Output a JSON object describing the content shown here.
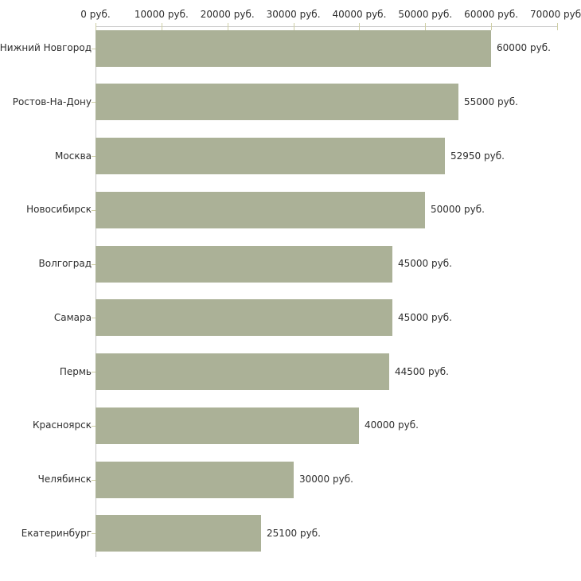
{
  "chart_data": {
    "type": "bar",
    "orientation": "horizontal",
    "title": "",
    "xlabel": "",
    "ylabel": "",
    "categories": [
      "Нижний Новгород",
      "Ростов-На-Дону",
      "Москва",
      "Новосибирск",
      "Волгоград",
      "Самара",
      "Пермь",
      "Красноярск",
      "Челябинск",
      "Екатеринбург"
    ],
    "values": [
      60000,
      55000,
      52950,
      50000,
      45000,
      45000,
      44500,
      40000,
      30000,
      25100
    ],
    "value_labels": [
      "60000 руб.",
      "55000 руб.",
      "52950 руб.",
      "50000 руб.",
      "45000 руб.",
      "45000 руб.",
      "44500 руб.",
      "40000 руб.",
      "30000 руб.",
      "25100 руб."
    ],
    "x_ticks": [
      0,
      10000,
      20000,
      30000,
      40000,
      50000,
      60000,
      70000
    ],
    "x_tick_labels": [
      "0 руб.",
      "10000 руб.",
      "20000 руб.",
      "30000 руб.",
      "40000 руб.",
      "50000 руб.",
      "60000 руб.",
      "70000 руб."
    ],
    "xlim": [
      0,
      70000
    ],
    "grid": false,
    "legend_position": "none",
    "colors": {
      "bar_fill": "#abb197",
      "axis_line": "#c6c6c6",
      "tick_mark": "#cfcfa5",
      "text": "#2e2e2e",
      "background": "#ffffff"
    }
  }
}
